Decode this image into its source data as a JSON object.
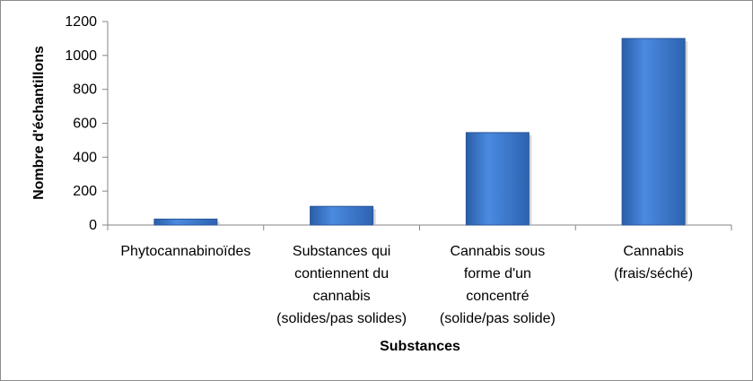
{
  "chart_data": {
    "type": "bar",
    "categories": [
      [
        "Phytocannabinoïdes"
      ],
      [
        "Substances qui",
        "contiennent du",
        "cannabis",
        "(solides/pas solides)"
      ],
      [
        "Cannabis sous",
        "forme d'un",
        "concentré",
        "(solide/pas solide)"
      ],
      [
        "Cannabis",
        "(frais/séché)"
      ]
    ],
    "values": [
      35,
      110,
      545,
      1100
    ],
    "xlabel": "Substances",
    "ylabel": "Nombre d'échantillons",
    "ylim": [
      0,
      1200
    ],
    "yticks": [
      0,
      200,
      400,
      600,
      800,
      1000,
      1200
    ],
    "grid": false,
    "legend": "none",
    "bar_color": "#3a78cc"
  }
}
